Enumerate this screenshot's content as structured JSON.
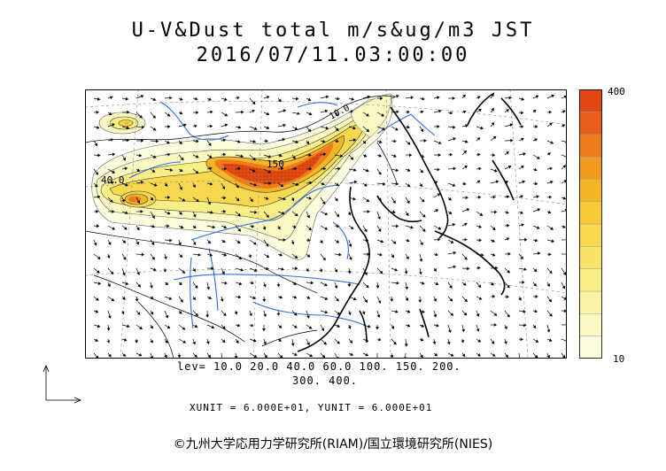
{
  "title": {
    "line1": "U-V&Dust total m/s&ug/m3 JST",
    "line2": "2016/07/11.03:00:00"
  },
  "colorbar": {
    "max_label": "400",
    "min_label": "10",
    "colors": [
      "#fdfde0",
      "#fbf9c2",
      "#f9f4a4",
      "#f8ee86",
      "#f8e46a",
      "#f7d84e",
      "#f5ca38",
      "#f3b627",
      "#f09a20",
      "#ec7c1c",
      "#e65e17",
      "#e04814"
    ]
  },
  "contour_labels": {
    "label_a": "40.0",
    "label_b": "150",
    "label_c": "10.0"
  },
  "levels": {
    "line1": "lev= 10.0 20.0 40.0 60.0 100. 150. 200.",
    "line2": "300. 400."
  },
  "units": "XUNIT = 6.000E+01, YUNIT = 6.000E+01",
  "copyright": "©九州大学応用力学研究所(RIAM)/国立環境研究所(NIES)"
}
